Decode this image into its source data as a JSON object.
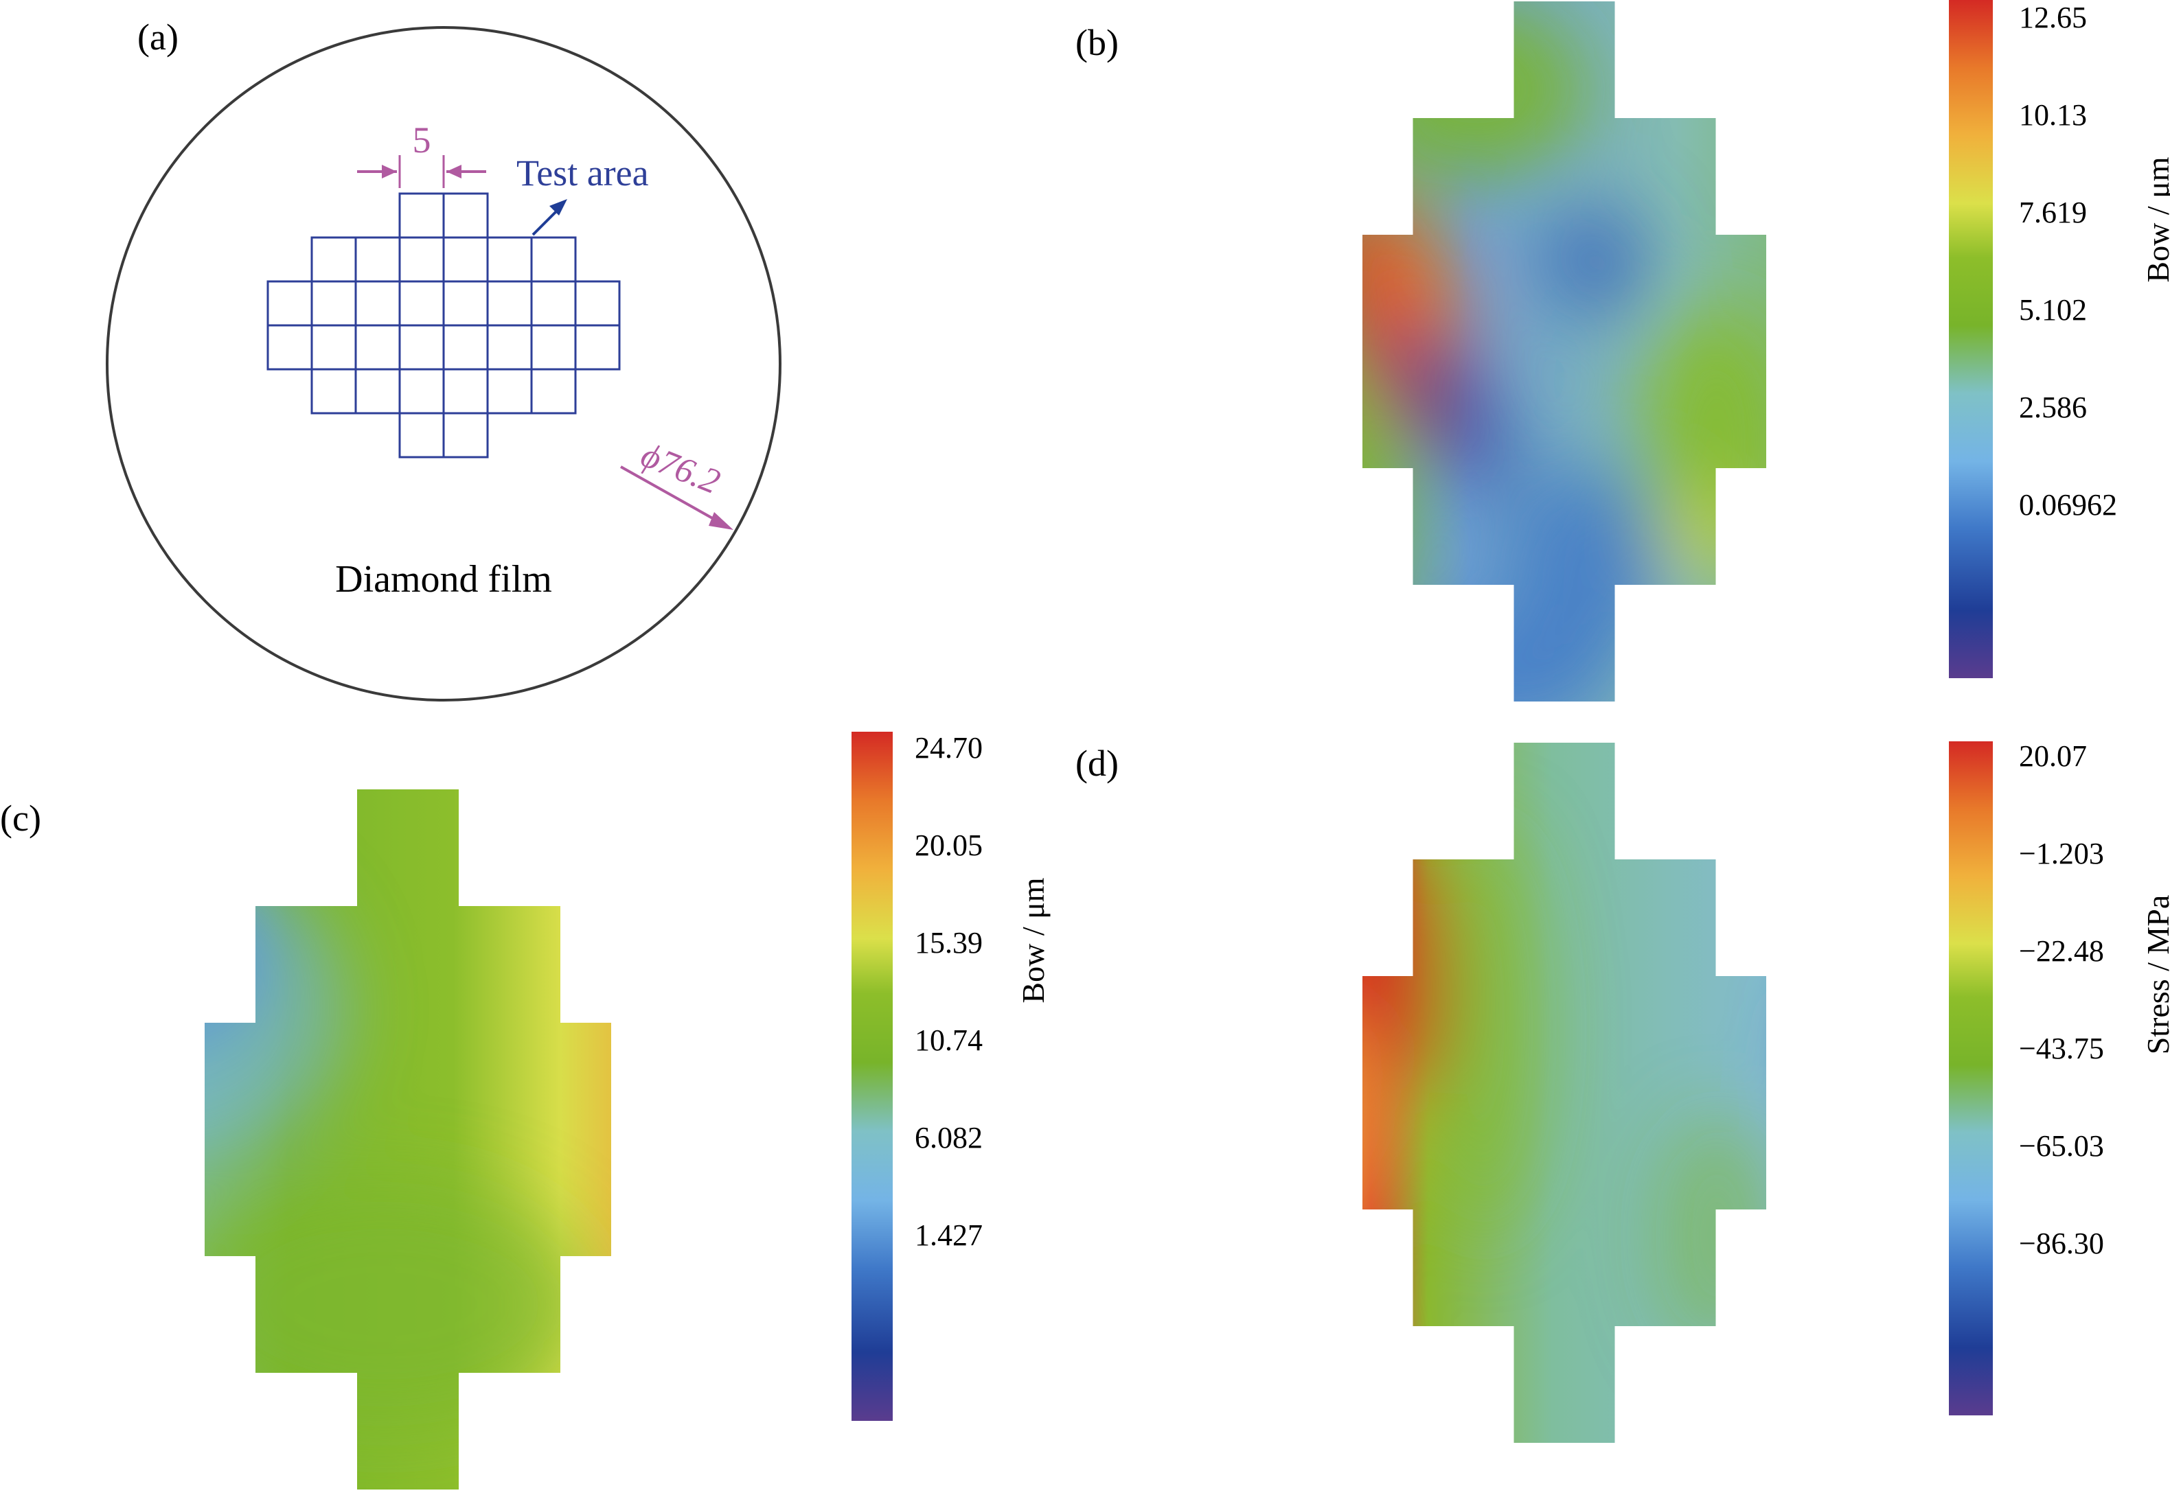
{
  "panels": {
    "a": {
      "label": "(a)",
      "grid_cell_label": "5",
      "test_area_label": "Test area",
      "diameter_label": "ϕ76.2",
      "film_label": "Diamond film",
      "colors": {
        "outline": "#3a3a3a",
        "grid": "#2e3f98",
        "dimension": "#b05aa0",
        "test_text": "#2e3f98"
      }
    },
    "b": {
      "label": "(b)"
    },
    "c": {
      "label": "(c)"
    },
    "d": {
      "label": "(d)"
    }
  },
  "chart_data": [
    {
      "panel": "b",
      "type": "heatmap",
      "colorbar_title": "Bow / μm",
      "colorbar_ticks": [
        "12.65",
        "10.13",
        "7.619",
        "5.102",
        "2.586",
        "0.06962"
      ],
      "range": [
        -2.45,
        12.65
      ],
      "grid_rows": [
        2,
        6,
        8,
        8,
        6,
        2
      ]
    },
    {
      "panel": "c",
      "type": "heatmap",
      "colorbar_title": "Bow / μm",
      "colorbar_ticks": [
        "24.70",
        "20.05",
        "15.39",
        "10.74",
        "6.082",
        "1.427"
      ],
      "range": [
        -3.23,
        24.7
      ],
      "grid_rows": [
        2,
        6,
        8,
        8,
        6,
        2
      ]
    },
    {
      "panel": "d",
      "type": "heatmap",
      "colorbar_title": "Stress / MPa",
      "colorbar_ticks": [
        "20.07",
        "−1.203",
        "−22.48",
        "−43.75",
        "−65.03",
        "−86.30"
      ],
      "range": [
        -107.58,
        20.07
      ],
      "grid_rows": [
        2,
        6,
        8,
        8,
        6,
        2
      ]
    }
  ],
  "colormap": [
    "#5a3c8e",
    "#1f3d96",
    "#3f78c8",
    "#74b4e6",
    "#7fc1c6",
    "#78b42a",
    "#8dbe2a",
    "#dbe04a",
    "#f0b13c",
    "#e8792a",
    "#d42a24"
  ]
}
